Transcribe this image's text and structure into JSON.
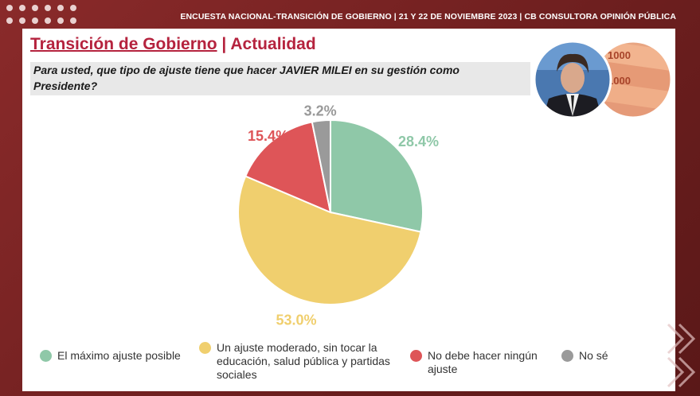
{
  "header": {
    "survey_label": "ENCUESTA NACIONAL-TRANSICIÓN DE GOBIERNO  | 21 Y 22 DE NOVIEMBRE 2023 | CB CONSULTORA OPINIÓN PÚBLICA"
  },
  "title": {
    "main": "Transición de Gobierno",
    "separator": "|",
    "section": "Actualidad"
  },
  "question": {
    "line1": "Para usted, que tipo de ajuste tiene que hacer JAVIER MILEI en su gestión como",
    "line2": "Presidente?"
  },
  "colors": {
    "accent": "#b5233e",
    "frame": "#7a2424",
    "green": "#8fc8a8",
    "yellow": "#f0cf6e",
    "red": "#de5558",
    "gray": "#9a9a9a"
  },
  "chart_data": {
    "type": "pie",
    "categories": [
      "El máximo ajuste posible",
      "Un ajuste moderado, sin tocar la educación, salud pública y partidas sociales",
      "No debe hacer ningún ajuste",
      "No sé"
    ],
    "values": [
      28.4,
      53.0,
      15.4,
      3.2
    ],
    "labels": [
      "28.4%",
      "53.0%",
      "15.4%",
      "3.2%"
    ],
    "colors": [
      "#8fc8a8",
      "#f0cf6e",
      "#de5558",
      "#9a9a9a"
    ],
    "start_angle_deg": 0,
    "direction": "clockwise",
    "legend": {
      "placement": "bottom",
      "items": [
        {
          "line1": "El máximo ajuste posible",
          "line2": "",
          "line3": ""
        },
        {
          "line1": "Un ajuste moderado, sin tocar la",
          "line2": "educación, salud pública y partidas",
          "line3": "sociales"
        },
        {
          "line1": "No debe hacer ningún",
          "line2": "ajuste",
          "line3": ""
        },
        {
          "line1": "No sé",
          "line2": "",
          "line3": ""
        }
      ]
    }
  }
}
